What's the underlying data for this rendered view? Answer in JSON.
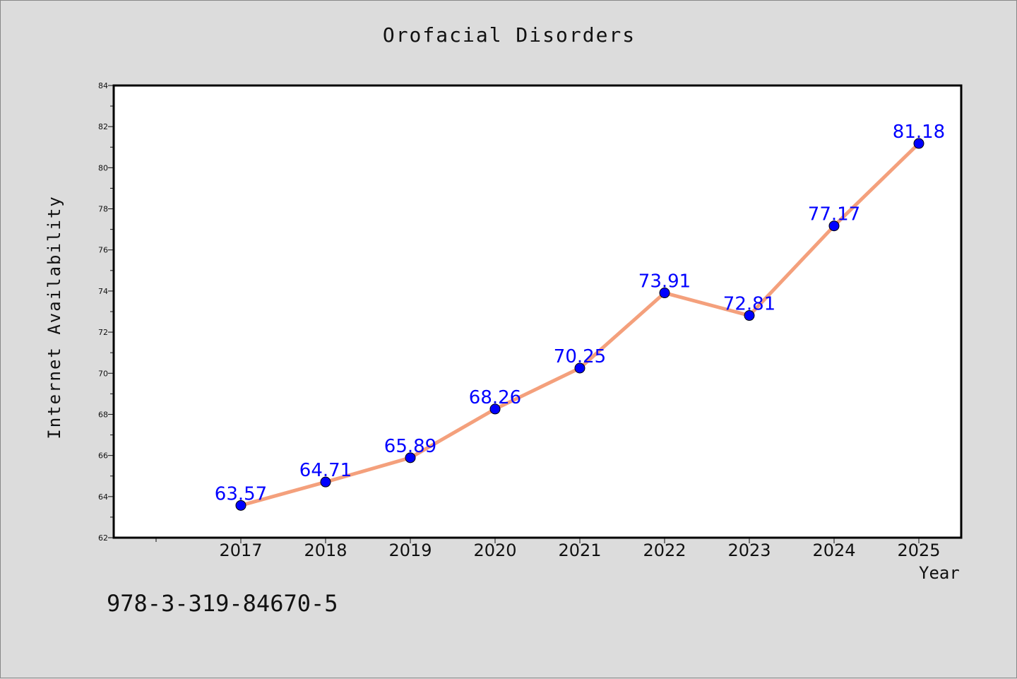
{
  "chart_data": {
    "type": "line",
    "title": "Orofacial Disorders",
    "xlabel": "Year",
    "ylabel": "Internet Availability",
    "x": [
      "2017",
      "2018",
      "2019",
      "2020",
      "2021",
      "2022",
      "2023",
      "2024",
      "2025"
    ],
    "y": [
      63.57,
      64.71,
      65.89,
      68.26,
      70.25,
      73.91,
      72.81,
      77.17,
      81.18
    ],
    "data_labels": [
      "63.57",
      "64.71",
      "65.89",
      "68.26",
      "70.25",
      "73.91",
      "72.81",
      "77.17",
      "81.18"
    ],
    "ylim": [
      62,
      84
    ],
    "yticks": [
      62,
      64,
      66,
      68,
      70,
      72,
      74,
      76,
      78,
      80,
      82,
      84
    ],
    "grid": false,
    "line_color": "#f4a07c",
    "marker_color": "#0000ff",
    "label_color": "#0000ff"
  },
  "footer": {
    "code": "978-3-319-84670-5"
  }
}
